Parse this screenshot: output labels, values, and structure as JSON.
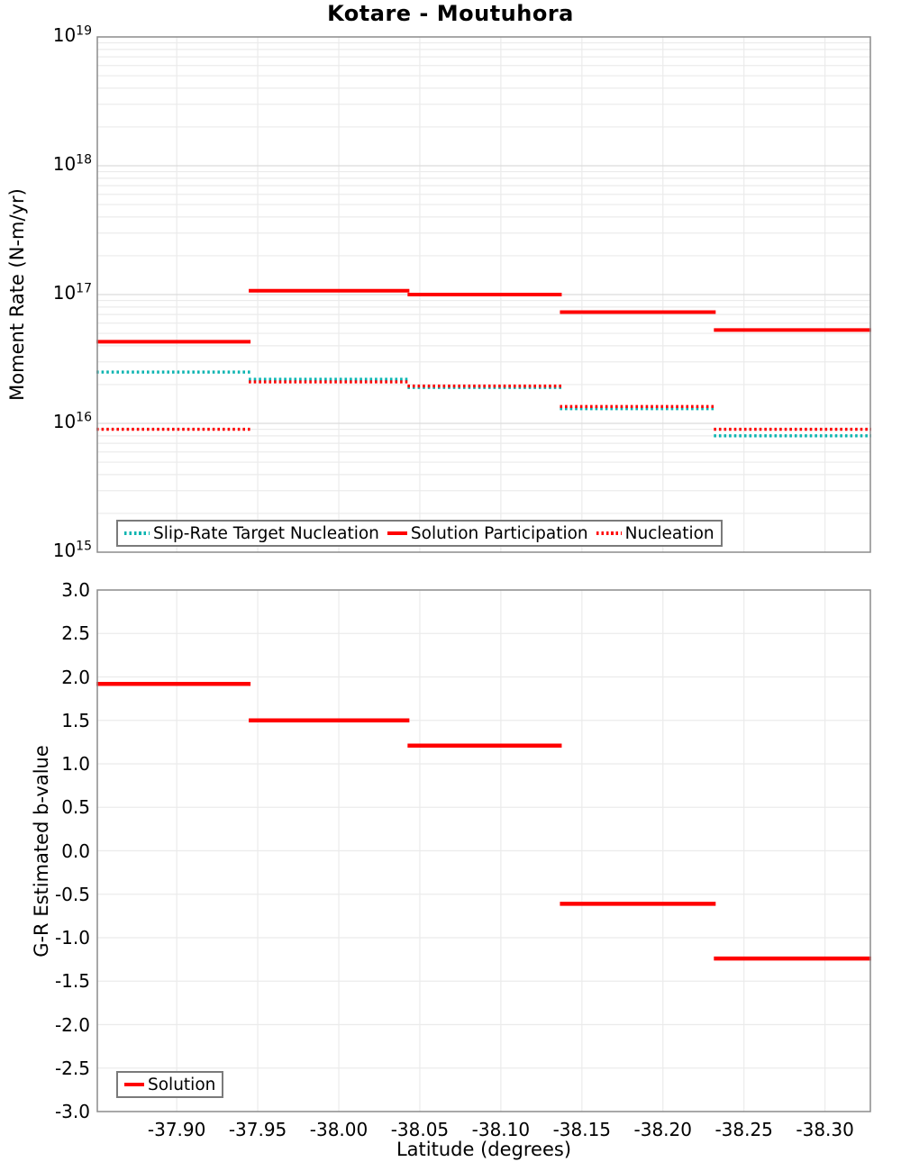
{
  "title": "Kotare - Moutuhora",
  "axes": {
    "xlabel": "Latitude (degrees)",
    "xticks": {
      "values": [
        -37.9,
        -37.95,
        -38.0,
        -38.05,
        -38.1,
        -38.15,
        -38.2,
        -38.25,
        -38.3
      ],
      "labels": [
        "-37.90",
        "-37.95",
        "-38.00",
        "-38.05",
        "-38.10",
        "-38.15",
        "-38.20",
        "-38.25",
        "-38.30"
      ]
    },
    "top": {
      "ylabel": "Moment Rate (N-m/yr)",
      "yscale": "log",
      "ytick_exponents": [
        19,
        18,
        17,
        16,
        15
      ]
    },
    "bottom": {
      "ylabel": "G-R Estimated b-value",
      "ytick_values": [
        3.0,
        2.5,
        2.0,
        1.5,
        1.0,
        0.5,
        0.0,
        -0.5,
        -1.0,
        -1.5,
        -2.0,
        -2.5,
        -3.0
      ],
      "ytick_labels": [
        "3.0",
        "2.5",
        "2.0",
        "1.5",
        "1.0",
        "0.5",
        "0.0",
        "-0.5",
        "-1.0",
        "-1.5",
        "-2.0",
        "-2.5",
        "-3.0"
      ]
    }
  },
  "legends": {
    "top": [
      {
        "label": "Slip-Rate Target Nucleation",
        "color": "#0ab4b0",
        "style": "dotted"
      },
      {
        "label": "Solution Participation",
        "color": "#ff0000",
        "style": "solid"
      },
      {
        "label": "Nucleation",
        "color": "#ff0000",
        "style": "dotted"
      }
    ],
    "bottom": [
      {
        "label": "Solution",
        "color": "#ff0000",
        "style": "solid"
      }
    ]
  },
  "colors": {
    "red": "#ff0000",
    "teal": "#0ab4b0",
    "grid_minor": "#ebebeb",
    "grid_major": "#dcdcdc",
    "frame": "#8c8c8c"
  },
  "chart_data": [
    {
      "type": "line",
      "subplot": "moment-rate",
      "title": "Kotare - Moutuhora",
      "ylabel": "Moment Rate (N-m/yr)",
      "yscale": "log",
      "ylim": [
        1000000000000000.0,
        1e+19
      ],
      "xlim": [
        -37.851,
        -38.328
      ],
      "grid": true,
      "legend_position": "lower-left",
      "bin_edges_lat": [
        -37.851,
        -37.945,
        -38.043,
        -38.137,
        -38.232,
        -38.328
      ],
      "series": [
        {
          "name": "Slip-Rate Target Nucleation",
          "style": "dotted",
          "color": "#0ab4b0",
          "values": [
            2.5e+16,
            2.2e+16,
            1.9e+16,
            1.3e+16,
            8000000000000000.0
          ]
        },
        {
          "name": "Nucleation",
          "style": "dotted",
          "color": "#ff0000",
          "values": [
            9000000000000000.0,
            2.1e+16,
            1.95e+16,
            1.35e+16,
            9000000000000000.0
          ]
        },
        {
          "name": "Solution Participation",
          "style": "solid",
          "color": "#ff0000",
          "values": [
            4.3e+16,
            1.07e+17,
            1e+17,
            7.3e+16,
            5.3e+16
          ]
        }
      ]
    },
    {
      "type": "line",
      "subplot": "b-value",
      "xlabel": "Latitude (degrees)",
      "ylabel": "G-R Estimated b-value",
      "ylim": [
        -3.0,
        3.0
      ],
      "xlim": [
        -37.851,
        -38.328
      ],
      "grid": true,
      "legend_position": "lower-left",
      "bin_edges_lat": [
        -37.851,
        -37.945,
        -38.043,
        -38.137,
        -38.232,
        -38.328
      ],
      "series": [
        {
          "name": "Solution",
          "style": "solid",
          "color": "#ff0000",
          "values": [
            1.92,
            1.5,
            1.21,
            -0.61,
            -1.24
          ]
        }
      ]
    }
  ]
}
